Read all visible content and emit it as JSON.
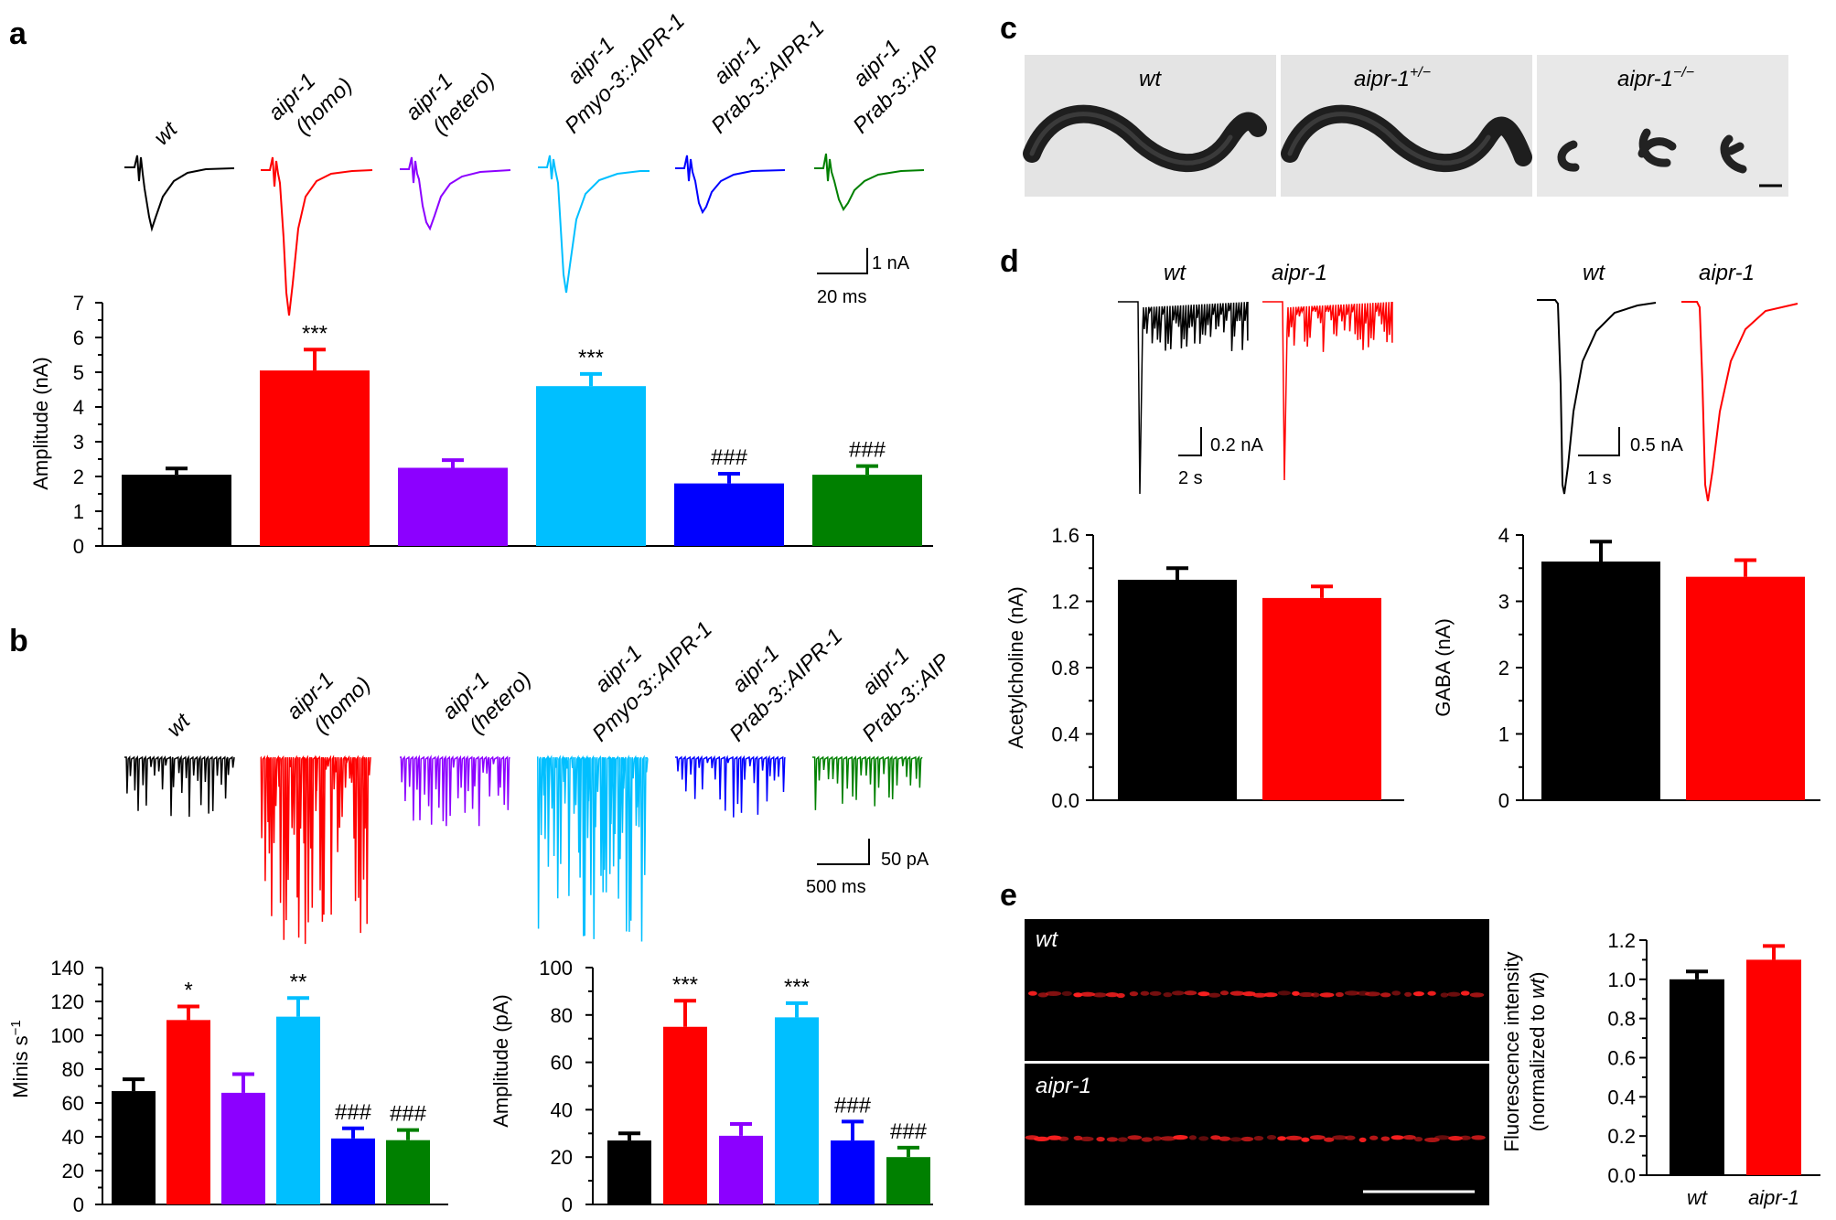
{
  "panels": [
    "a",
    "b",
    "c",
    "d",
    "e"
  ],
  "colors": {
    "wt": "#000000",
    "homo": "#ff0000",
    "hetero": "#8c00ff",
    "pmyo": "#00bfff",
    "prab_aipr": "#0000ff",
    "prab_aip": "#008000"
  },
  "genotype_labels": [
    {
      "l1": "wt",
      "l2": ""
    },
    {
      "l1": "aipr-1",
      "l2": "(homo)"
    },
    {
      "l1": "aipr-1",
      "l2": "(hetero)"
    },
    {
      "l1": "aipr-1",
      "l2": "Pmyo-3::AIPR-1"
    },
    {
      "l1": "aipr-1",
      "l2": "Prab-3::AIPR-1"
    },
    {
      "l1": "aipr-1",
      "l2": "Prab-3::AIP"
    }
  ],
  "scalebars": {
    "a": {
      "x": "20 ms",
      "y": "1 nA"
    },
    "b": {
      "x": "500 ms",
      "y": "50 pA"
    },
    "d_ach": {
      "x": "2 s",
      "y": "0.2 nA"
    },
    "d_gaba": {
      "x": "1 s",
      "y": "0.5 nA"
    }
  },
  "worm_panel": {
    "labels": [
      "wt",
      "aipr-1",
      "aipr-1"
    ],
    "superscripts": [
      "",
      "+/−",
      "−/−"
    ]
  },
  "trace_labels_d": [
    "wt",
    "aipr-1",
    "wt",
    "aipr-1"
  ],
  "image_labels_e": [
    "wt",
    "aipr-1"
  ],
  "chart_data": [
    {
      "id": "a_amplitude",
      "type": "bar",
      "categories": [
        "wt",
        "aipr-1 (homo)",
        "aipr-1 (hetero)",
        "aipr-1 Pmyo-3::AIPR-1",
        "aipr-1 Prab-3::AIPR-1",
        "aipr-1 Prab-3::AIP"
      ],
      "values": [
        2.05,
        5.05,
        2.25,
        4.6,
        1.8,
        2.05
      ],
      "errors": [
        0.18,
        0.6,
        0.22,
        0.35,
        0.28,
        0.25
      ],
      "annotations": [
        "",
        "***",
        "",
        "***",
        "###",
        "###"
      ],
      "ylabel": "Amplitude (nA)",
      "xlabel": "",
      "ylim": [
        0,
        7
      ],
      "yticks": [
        "0",
        "1",
        "2",
        "3",
        "4",
        "5",
        "6",
        "7"
      ]
    },
    {
      "id": "b_frequency",
      "type": "bar",
      "categories": [
        "wt",
        "aipr-1 (homo)",
        "aipr-1 (hetero)",
        "aipr-1 Pmyo-3::AIPR-1",
        "aipr-1 Prab-3::AIPR-1",
        "aipr-1 Prab-3::AIP"
      ],
      "values": [
        67,
        109,
        66,
        111,
        39,
        38
      ],
      "errors": [
        7,
        8,
        11,
        11,
        6,
        6
      ],
      "annotations": [
        "",
        "*",
        "",
        "**",
        "###",
        "###"
      ],
      "ylabel": "Minis s",
      "ylabel_superscript": "−1",
      "xlabel": "",
      "ylim": [
        0,
        140
      ],
      "yticks": [
        "0",
        "20",
        "40",
        "60",
        "80",
        "100",
        "120",
        "140"
      ]
    },
    {
      "id": "b_amplitude",
      "type": "bar",
      "categories": [
        "wt",
        "aipr-1 (homo)",
        "aipr-1 (hetero)",
        "aipr-1 Pmyo-3::AIPR-1",
        "aipr-1 Prab-3::AIPR-1",
        "aipr-1 Prab-3::AIP"
      ],
      "values": [
        27,
        75,
        29,
        79,
        27,
        20
      ],
      "errors": [
        3,
        11,
        5,
        6,
        8,
        4
      ],
      "annotations": [
        "",
        "***",
        "",
        "***",
        "###",
        "###"
      ],
      "ylabel": "Amplitude (pA)",
      "xlabel": "",
      "ylim": [
        0,
        100
      ],
      "yticks": [
        "0",
        "20",
        "40",
        "60",
        "80",
        "100"
      ]
    },
    {
      "id": "d_acetylcholine",
      "type": "bar",
      "categories": [
        "wt",
        "aipr-1"
      ],
      "values": [
        1.33,
        1.22
      ],
      "errors": [
        0.07,
        0.07
      ],
      "ylabel": "Acetylcholine (nA)",
      "xlabel": "",
      "ylim": [
        0,
        1.6
      ],
      "yticks": [
        "0.0",
        "0.4",
        "0.8",
        "1.2",
        "1.6"
      ]
    },
    {
      "id": "d_gaba",
      "type": "bar",
      "categories": [
        "wt",
        "aipr-1"
      ],
      "values": [
        3.6,
        3.37
      ],
      "errors": [
        0.3,
        0.25
      ],
      "ylabel": "GABA (nA)",
      "xlabel": "",
      "ylim": [
        0,
        4
      ],
      "yticks": [
        "0",
        "1",
        "2",
        "3",
        "4"
      ]
    },
    {
      "id": "e_fluorescence",
      "type": "bar",
      "categories": [
        "wt",
        "aipr-1"
      ],
      "values": [
        1.0,
        1.1
      ],
      "errors": [
        0.04,
        0.07
      ],
      "ylabel": "Fluorescence intensity",
      "ylabel2_prefix": "(normalized to ",
      "ylabel2_italic": "wt",
      "ylabel2_suffix": ")",
      "xlabel": "",
      "ylim": [
        0,
        1.2
      ],
      "yticks": [
        "0.0",
        "0.2",
        "0.4",
        "0.6",
        "0.8",
        "1.0",
        "1.2"
      ]
    }
  ]
}
